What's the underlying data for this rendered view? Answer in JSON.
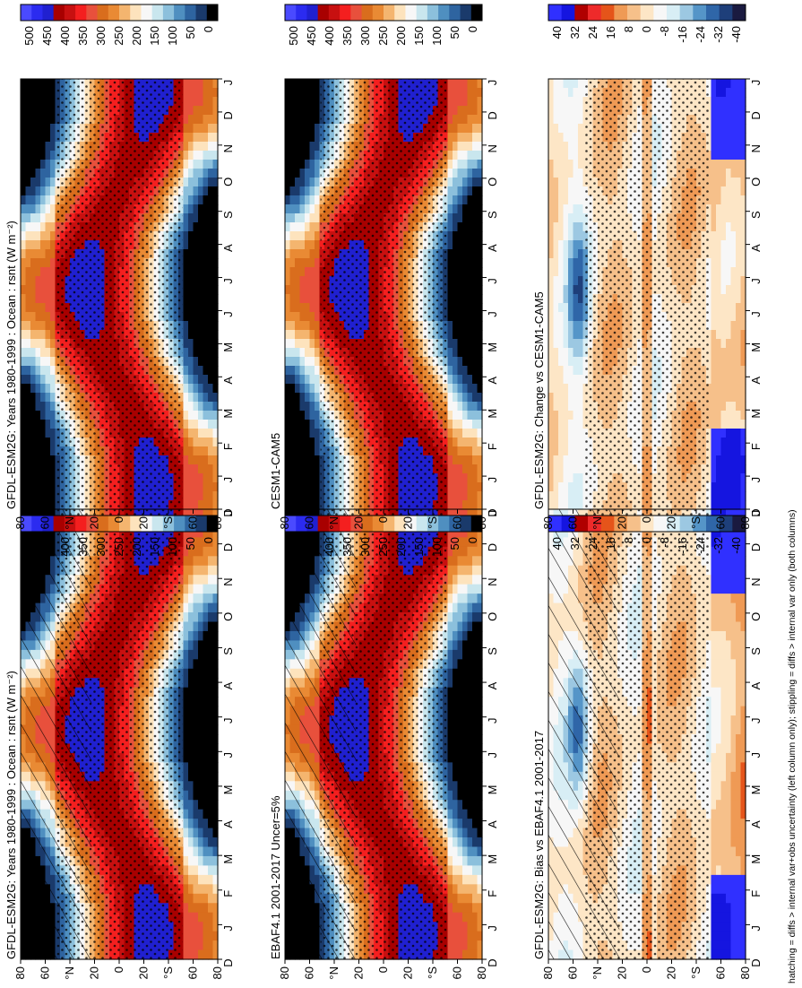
{
  "figure": {
    "footnote": "hatching = diffs > internal var+obs uncertainty (left column only); stippling = diffs > internal var only (both columns)"
  },
  "chart_data": [
    {
      "type": "heatmap",
      "title": "GFDL-ESM2G: Years 1980-1999 : Ocean : rsnt (W m⁻²)",
      "x_ticks": [
        "D",
        "J",
        "F",
        "M",
        "A",
        "M",
        "J",
        "J",
        "A",
        "S",
        "O",
        "N",
        "D",
        "J"
      ],
      "y_ticks": [
        "80",
        "60",
        "°N",
        "20",
        "0",
        "20",
        "°S",
        "60",
        "80"
      ],
      "colorbar_labels": [
        "500",
        "450",
        "400",
        "350",
        "300",
        "250",
        "200",
        "150",
        "100",
        "50",
        "0"
      ],
      "colorbar_range": [
        0,
        500
      ],
      "hatching": true,
      "stippling": true
    },
    {
      "type": "heatmap",
      "title": "GFDL-ESM2G: Years 1980-1999 : Ocean : rsnt (W m⁻²)",
      "x_ticks": [
        "D",
        "J",
        "F",
        "M",
        "A",
        "M",
        "J",
        "J",
        "A",
        "S",
        "O",
        "N",
        "D",
        "J"
      ],
      "y_ticks": [
        "80",
        "60",
        "°N",
        "20",
        "0",
        "20",
        "°S",
        "60",
        "80"
      ],
      "colorbar_labels": [
        "500",
        "450",
        "400",
        "350",
        "300",
        "250",
        "200",
        "150",
        "100",
        "50",
        "0"
      ],
      "colorbar_range": [
        0,
        500
      ],
      "hatching": false,
      "stippling": true
    },
    {
      "type": "heatmap",
      "title": "EBAF4.1 2001-2017 Uncer=5%",
      "x_ticks": [
        "D",
        "J",
        "F",
        "M",
        "A",
        "M",
        "J",
        "J",
        "A",
        "S",
        "O",
        "N",
        "D",
        "J"
      ],
      "y_ticks": [
        "80",
        "60",
        "°N",
        "20",
        "0",
        "20",
        "°S",
        "60",
        "80"
      ],
      "colorbar_labels": [
        "500",
        "450",
        "400",
        "350",
        "300",
        "250",
        "200",
        "150",
        "100",
        "50",
        "0"
      ],
      "colorbar_range": [
        0,
        500
      ],
      "hatching": true,
      "stippling": true
    },
    {
      "type": "heatmap",
      "title": "CESM1-CAM5",
      "x_ticks": [
        "D",
        "J",
        "F",
        "M",
        "A",
        "M",
        "J",
        "J",
        "A",
        "S",
        "O",
        "N",
        "D",
        "J"
      ],
      "y_ticks": [
        "80",
        "60",
        "°N",
        "20",
        "0",
        "20",
        "°S",
        "60",
        "80"
      ],
      "colorbar_labels": [
        "500",
        "450",
        "400",
        "350",
        "300",
        "250",
        "200",
        "150",
        "100",
        "50",
        "0"
      ],
      "colorbar_range": [
        0,
        500
      ],
      "hatching": false,
      "stippling": true
    },
    {
      "type": "heatmap",
      "title": "GFDL-ESM2G: Bias vs EBAF4.1 2001-2017",
      "x_ticks": [
        "D",
        "J",
        "F",
        "M",
        "A",
        "M",
        "J",
        "J",
        "A",
        "S",
        "O",
        "N",
        "D",
        "J"
      ],
      "y_ticks": [
        "80",
        "60",
        "°N",
        "20",
        "0",
        "20",
        "°S",
        "60",
        "80"
      ],
      "colorbar_labels": [
        "40",
        "32",
        "24",
        "16",
        "8",
        "0",
        "-8",
        "-16",
        "-24",
        "-32",
        "-40"
      ],
      "colorbar_range": [
        -40,
        40
      ],
      "hatching": true,
      "stippling": true
    },
    {
      "type": "heatmap",
      "title": "GFDL-ESM2G: Change vs CESM1-CAM5",
      "x_ticks": [
        "D",
        "J",
        "F",
        "M",
        "A",
        "M",
        "J",
        "J",
        "A",
        "S",
        "O",
        "N",
        "D",
        "J"
      ],
      "y_ticks": [
        "80",
        "60",
        "°N",
        "20",
        "0",
        "20",
        "°S",
        "60",
        "80"
      ],
      "colorbar_labels": [
        "40",
        "32",
        "24",
        "16",
        "8",
        "0",
        "-8",
        "-16",
        "-24",
        "-32",
        "-40"
      ],
      "colorbar_range": [
        -40,
        40
      ],
      "hatching": false,
      "stippling": true
    }
  ],
  "colormaps": {
    "absolute": [
      "#000000",
      "#1a3a6b",
      "#2e64a0",
      "#4f8fc0",
      "#8cc0dc",
      "#c9e6ee",
      "#f7f7f7",
      "#fde3bd",
      "#f4b56f",
      "#e98a34",
      "#d96d1d",
      "#e8503c",
      "#f41f1f",
      "#c81010",
      "#a80000",
      "#2020d0",
      "#2b2bf0",
      "#4a4aff"
    ],
    "difference": [
      "#1a1a40",
      "#1e3f7a",
      "#2f66a8",
      "#5595c8",
      "#9cc8e2",
      "#d8eef5",
      "#f7f7f7",
      "#fde6c6",
      "#f6c08a",
      "#ef9a55",
      "#e5541a",
      "#ee2a2a",
      "#b00000",
      "#1515e0",
      "#3030ff"
    ]
  }
}
